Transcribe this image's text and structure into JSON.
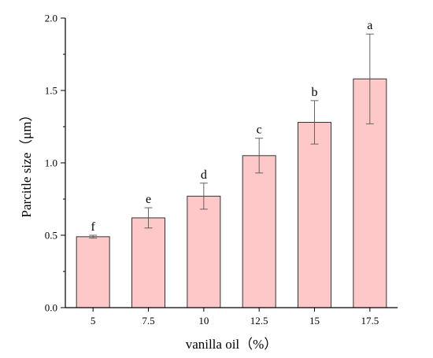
{
  "chart_data": {
    "type": "bar",
    "title": "",
    "xlabel": "vanilla oil（%）",
    "ylabel": "Parcitle size（μm）",
    "ylim": [
      0,
      2.0
    ],
    "yticks": [
      "0.0",
      "0.5",
      "1.0",
      "1.5",
      "2.0"
    ],
    "grid": false,
    "bar_color": "#ffc8c8",
    "bar_edge_color": "#333333",
    "categories": [
      "5",
      "7.5",
      "10",
      "12.5",
      "15",
      "17.5"
    ],
    "values": [
      0.49,
      0.62,
      0.77,
      1.05,
      1.28,
      1.58
    ],
    "errors": [
      0.01,
      0.07,
      0.09,
      0.12,
      0.15,
      0.31
    ],
    "labels": [
      "f",
      "e",
      "d",
      "c",
      "b",
      "a"
    ]
  }
}
